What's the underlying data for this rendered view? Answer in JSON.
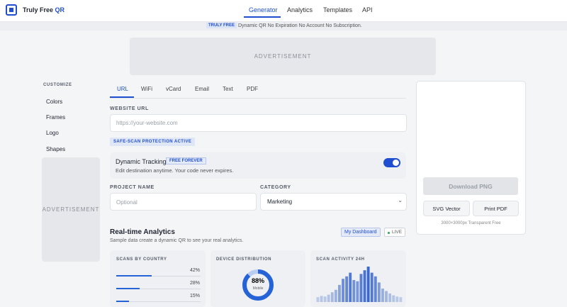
{
  "header": {
    "logo": "Truly Free",
    "logo_accent": "QR",
    "nav": [
      "Generator",
      "Analytics",
      "Templates",
      "API"
    ]
  },
  "banner": {
    "badge": "TRULY FREE",
    "text": "Dynamic QR No Expiration No Account No Subscription."
  },
  "ad_top": "ADVERTISEMENT",
  "sidebar": {
    "heading": "CUSTOMIZE",
    "items": [
      "Colors",
      "Frames",
      "Logo",
      "Shapes"
    ],
    "ad": "ADVERTISEMENT"
  },
  "tabs": [
    "URL",
    "WiFi",
    "vCard",
    "Email",
    "Text",
    "PDF"
  ],
  "form": {
    "url_label": "WEBSITE URL",
    "url_placeholder": "https://your-website.com",
    "safe_badge": "SAFE-SCAN PROTECTION ACTIVE",
    "tracking_title": "Dynamic Tracking",
    "tracking_badge": "FREE FOREVER",
    "tracking_desc": "Edit destination anytime. Your code never expires.",
    "project_label": "PROJECT NAME",
    "project_placeholder": "Optional",
    "category_label": "CATEGORY",
    "category_value": "Marketing"
  },
  "analytics": {
    "title": "Real-time Analytics",
    "subtitle": "Sample data create a dynamic QR to see your real analytics.",
    "dashboard": "My Dashboard",
    "live": "LIVE",
    "country": {
      "title": "SCANS BY COUNTRY",
      "rows": [
        {
          "value": 42,
          "label": "42%"
        },
        {
          "value": 28,
          "label": "28%"
        },
        {
          "value": 15,
          "label": "15%"
        }
      ]
    },
    "device": {
      "title": "DEVICE DISTRIBUTION",
      "value": 88,
      "label": "88%",
      "caption": "Mobile"
    },
    "activity": {
      "title": "SCAN ACTIVITY 24H",
      "values": [
        8,
        10,
        9,
        12,
        16,
        20,
        28,
        38,
        42,
        48,
        36,
        34,
        46,
        52,
        58,
        48,
        42,
        32,
        22,
        18,
        14,
        11,
        9,
        8
      ]
    }
  },
  "panel": {
    "download": "Download PNG",
    "svg": "SVG Vector",
    "pdf": "Print PDF",
    "caption": "3000×3000px Transparent Free"
  }
}
